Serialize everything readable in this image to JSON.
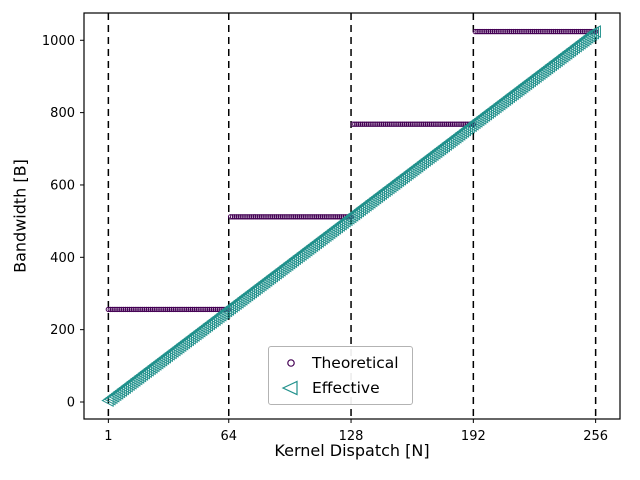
{
  "figure": {
    "background": "#ffffff"
  },
  "chart_data": {
    "type": "scatter",
    "title": "",
    "xlabel": "Kernel Dispatch [N]",
    "ylabel": "Bandwidth [B]",
    "xticks": [
      1,
      64,
      128,
      192,
      256
    ],
    "xtick_labels": [
      "1",
      "64",
      "128",
      "192",
      "256"
    ],
    "yticks": [
      0,
      200,
      400,
      600,
      800,
      1000
    ],
    "ytick_labels": [
      "0",
      "200",
      "400",
      "600",
      "800",
      "1000"
    ],
    "xlim": [
      -11.75,
      268.75
    ],
    "ylim": [
      -47.0,
      1075.4
    ],
    "grid": false,
    "vlines": {
      "x": [
        1,
        64,
        128,
        192,
        256
      ],
      "style": "dashed",
      "color": "#000000"
    },
    "legend": {
      "position": "lower center",
      "frame": true
    },
    "series": [
      {
        "name": "Theoretical",
        "marker": "open-circle",
        "color": "#440154",
        "x_start": 1,
        "x_end": 256,
        "x_step": 1,
        "y_rule": {
          "type": "step",
          "block_size": 64,
          "bytes_per_block": 256,
          "formula": "y = 256 * ceil(N / 64)"
        },
        "segments": [
          {
            "x_from": 1,
            "x_to": 64,
            "y": 256
          },
          {
            "x_from": 65,
            "x_to": 128,
            "y": 512
          },
          {
            "x_from": 129,
            "x_to": 192,
            "y": 768
          },
          {
            "x_from": 193,
            "x_to": 256,
            "y": 1024
          }
        ]
      },
      {
        "name": "Effective",
        "marker": "open-triangle-left",
        "color": "#21918c",
        "x_start": 1,
        "x_end": 256,
        "x_step": 1,
        "y_rule": {
          "type": "linear",
          "slope": 4,
          "intercept": 0,
          "formula": "y = 4 * N"
        },
        "endpoints": [
          [
            1,
            4
          ],
          [
            256,
            1024
          ]
        ]
      }
    ]
  }
}
